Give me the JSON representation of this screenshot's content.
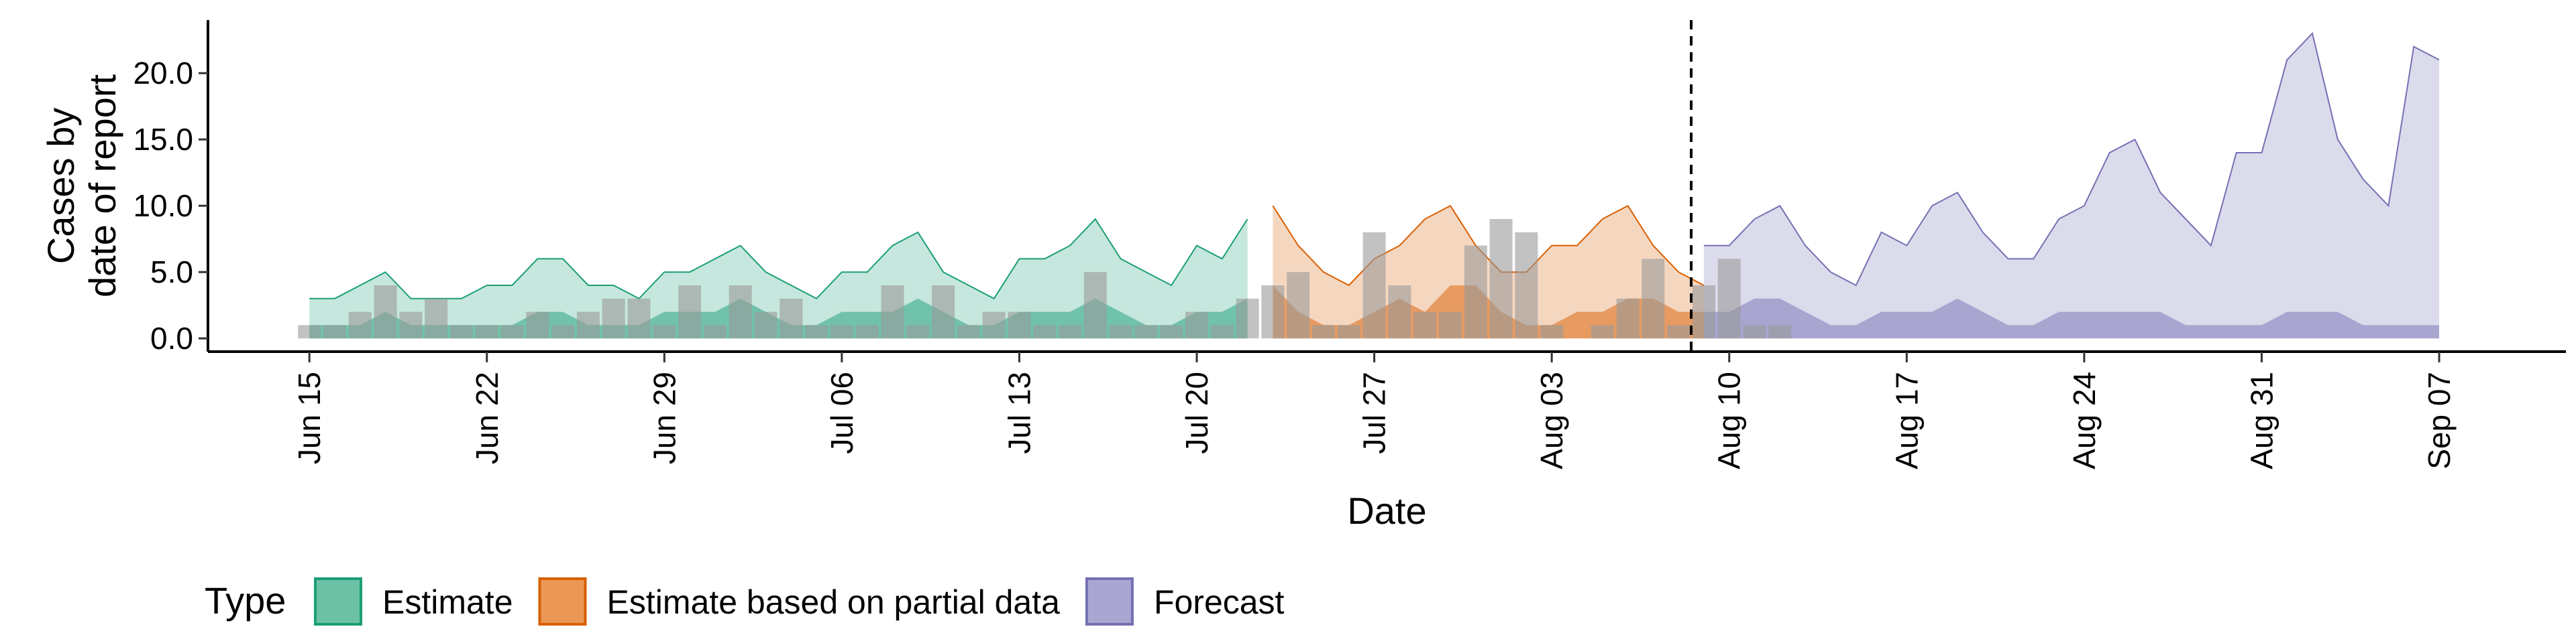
{
  "chart_data": {
    "type": "area",
    "xlabel": "Date",
    "ylabel_lines": [
      "Cases by",
      "date of report"
    ],
    "x_range": [
      "2020-06-11",
      "2020-09-12"
    ],
    "ylim": [
      -1,
      24
    ],
    "y_ticks": [
      0,
      5,
      10,
      15,
      20
    ],
    "y_tick_labels": [
      "0.0",
      "5.0",
      "10.0",
      "15.0",
      "20.0"
    ],
    "x_ticks": [
      "2020-06-15",
      "2020-06-22",
      "2020-06-29",
      "2020-07-06",
      "2020-07-13",
      "2020-07-20",
      "2020-07-27",
      "2020-08-03",
      "2020-08-10",
      "2020-08-17",
      "2020-08-24",
      "2020-08-31",
      "2020-09-07"
    ],
    "x_tick_labels": [
      "Jun 15",
      "Jun 22",
      "Jun 29",
      "Jul 06",
      "Jul 13",
      "Jul 20",
      "Jul 27",
      "Aug 03",
      "Aug 10",
      "Aug 17",
      "Aug 24",
      "Aug 31",
      "Sep 07"
    ],
    "forecast_date": "2020-08-08",
    "grid": false,
    "legend_position": "bottom-left",
    "legend": {
      "title": "Type",
      "items": [
        {
          "label": "Estimate",
          "fill": "#6cc1a5",
          "stroke": "#1b9e77"
        },
        {
          "label": "Estimate based on partial data",
          "fill": "#eb9756",
          "stroke": "#d95f02"
        },
        {
          "label": "Forecast",
          "fill": "#a9a7d2",
          "stroke": "#7570b3"
        }
      ]
    },
    "series": [
      {
        "name": "Estimate",
        "color": "#1b9e77",
        "start": "2020-06-15",
        "upper": [
          3,
          3,
          4,
          5,
          3,
          3,
          3,
          4,
          4,
          6,
          6,
          4,
          4,
          3,
          5,
          5,
          6,
          7,
          5,
          4,
          3,
          5,
          5,
          7,
          8,
          5,
          4,
          3,
          6,
          6,
          7,
          9,
          6,
          5,
          4,
          7,
          6,
          9
        ],
        "lower": [
          1,
          1,
          1,
          2,
          1,
          1,
          1,
          1,
          1,
          2,
          2,
          1,
          1,
          1,
          2,
          2,
          2,
          3,
          2,
          1,
          1,
          2,
          2,
          2,
          3,
          2,
          1,
          1,
          2,
          2,
          2,
          3,
          2,
          1,
          1,
          2,
          2,
          3
        ]
      },
      {
        "name": "Estimate based on partial data",
        "color": "#d95f02",
        "start": "2020-07-23",
        "upper": [
          10,
          7,
          5,
          4,
          6,
          7,
          9,
          10,
          7,
          5,
          5,
          7,
          7,
          9,
          10,
          7,
          5,
          4
        ],
        "lower": [
          4,
          2,
          1,
          1,
          2,
          3,
          2,
          4,
          4,
          2,
          1,
          1,
          2,
          2,
          3,
          3,
          2,
          2
        ]
      },
      {
        "name": "Forecast",
        "color": "#7570b3",
        "start": "2020-08-09",
        "upper": [
          7,
          7,
          9,
          10,
          7,
          5,
          4,
          8,
          7,
          10,
          11,
          8,
          6,
          6,
          9,
          10,
          14,
          15,
          11,
          9,
          7,
          14,
          14,
          21,
          23,
          15,
          12,
          10,
          22,
          21
        ],
        "lower": [
          2,
          2,
          3,
          3,
          2,
          1,
          1,
          2,
          2,
          2,
          3,
          2,
          1,
          1,
          2,
          2,
          2,
          2,
          2,
          1,
          1,
          1,
          1,
          2,
          2,
          2,
          1,
          1,
          1,
          1
        ]
      }
    ],
    "reported_cases": {
      "start": "2020-06-15",
      "values": [
        1,
        1,
        2,
        4,
        2,
        3,
        1,
        1,
        1,
        2,
        1,
        2,
        3,
        3,
        1,
        4,
        1,
        4,
        2,
        3,
        1,
        1,
        1,
        4,
        1,
        4,
        1,
        2,
        2,
        1,
        1,
        5,
        1,
        1,
        1,
        2,
        1,
        3,
        4,
        5,
        1,
        1,
        8,
        4,
        2,
        2,
        7,
        9,
        8,
        1,
        0,
        1,
        3,
        6,
        1,
        4,
        6,
        1,
        1
      ]
    }
  }
}
